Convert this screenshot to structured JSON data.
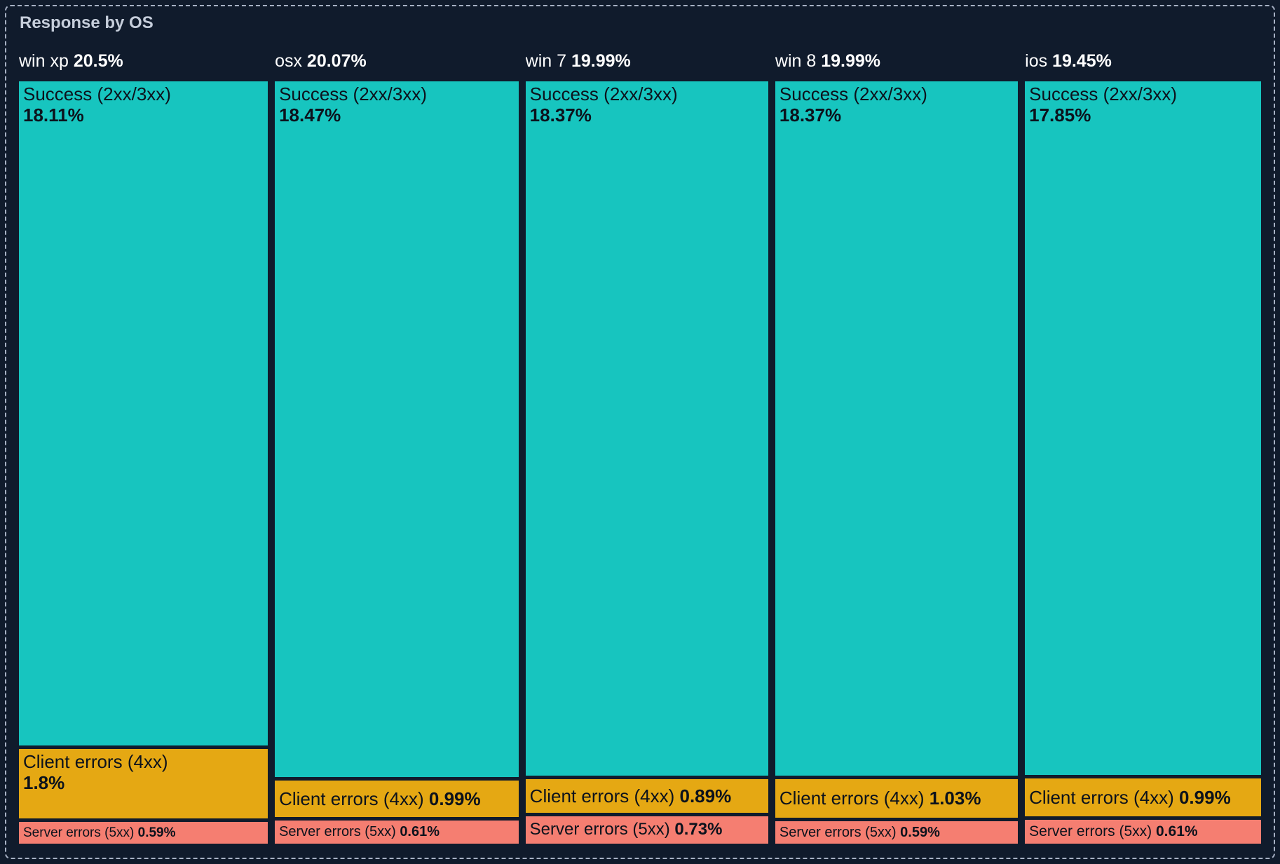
{
  "panel": {
    "title": "Response by OS"
  },
  "colors": {
    "background": "#101b2c",
    "panel_border": "#a7b1c4",
    "title_text": "#c6cedb",
    "header_text": "#ffffff",
    "segment_text": "#0c121c",
    "success": "#17c5bf",
    "client_errors": "#e5a813",
    "server_errors": "#f57e71"
  },
  "chart_data": {
    "type": "treemap",
    "title": "Response by OS",
    "unit": "%",
    "legend_position": "none",
    "groups": [
      {
        "label": "win xp",
        "total": 20.5,
        "total_display": "20.5%",
        "segments": [
          {
            "label": "Success (2xx/3xx)",
            "kind": "success",
            "value": 18.11,
            "display": "18.11%"
          },
          {
            "label": "Client errors (4xx)",
            "kind": "client_errors",
            "value": 1.8,
            "display": "1.8%"
          },
          {
            "label": "Server errors (5xx)",
            "kind": "server_errors",
            "value": 0.59,
            "display": "0.59%"
          }
        ]
      },
      {
        "label": "osx",
        "total": 20.07,
        "total_display": "20.07%",
        "segments": [
          {
            "label": "Success (2xx/3xx)",
            "kind": "success",
            "value": 18.47,
            "display": "18.47%"
          },
          {
            "label": "Client errors (4xx)",
            "kind": "client_errors",
            "value": 0.99,
            "display": "0.99%"
          },
          {
            "label": "Server errors (5xx)",
            "kind": "server_errors",
            "value": 0.61,
            "display": "0.61%"
          }
        ]
      },
      {
        "label": "win 7",
        "total": 19.99,
        "total_display": "19.99%",
        "segments": [
          {
            "label": "Success (2xx/3xx)",
            "kind": "success",
            "value": 18.37,
            "display": "18.37%"
          },
          {
            "label": "Client errors (4xx)",
            "kind": "client_errors",
            "value": 0.89,
            "display": "0.89%"
          },
          {
            "label": "Server errors (5xx)",
            "kind": "server_errors",
            "value": 0.73,
            "display": "0.73%"
          }
        ]
      },
      {
        "label": "win 8",
        "total": 19.99,
        "total_display": "19.99%",
        "segments": [
          {
            "label": "Success (2xx/3xx)",
            "kind": "success",
            "value": 18.37,
            "display": "18.37%"
          },
          {
            "label": "Client errors (4xx)",
            "kind": "client_errors",
            "value": 1.03,
            "display": "1.03%"
          },
          {
            "label": "Server errors (5xx)",
            "kind": "server_errors",
            "value": 0.59,
            "display": "0.59%"
          }
        ]
      },
      {
        "label": "ios",
        "total": 19.45,
        "total_display": "19.45%",
        "segments": [
          {
            "label": "Success (2xx/3xx)",
            "kind": "success",
            "value": 17.85,
            "display": "17.85%"
          },
          {
            "label": "Client errors (4xx)",
            "kind": "client_errors",
            "value": 0.99,
            "display": "0.99%"
          },
          {
            "label": "Server errors (5xx)",
            "kind": "server_errors",
            "value": 0.61,
            "display": "0.61%"
          }
        ]
      }
    ]
  }
}
